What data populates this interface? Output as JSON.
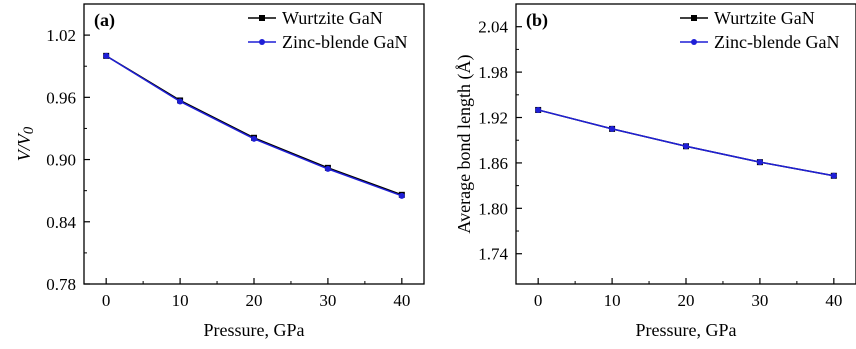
{
  "figure": {
    "colors": {
      "wurtzite": "#000000",
      "zincblende": "#1f1fd6",
      "axis": "#000000"
    }
  },
  "chart_data": [
    {
      "panel_label": "(a)",
      "type": "line",
      "xlabel": "Pressure, GPa",
      "ylabel": "V/V0",
      "ylabel_main": "V/V",
      "ylabel_sub": "0",
      "x": [
        0,
        10,
        20,
        30,
        40
      ],
      "xlim": [
        -3,
        43
      ],
      "ylim": [
        0.78,
        1.05
      ],
      "xticks": [
        0,
        10,
        20,
        30,
        40
      ],
      "yticks": [
        0.78,
        0.84,
        0.9,
        0.96,
        1.02
      ],
      "ytick_labels": [
        "0.78",
        "0.84",
        "0.90",
        "0.96",
        "1.02"
      ],
      "legend_position": "top-right",
      "series": [
        {
          "name": "Wurtzite GaN",
          "marker": "square",
          "color": "#000000",
          "values": [
            1.0,
            0.957,
            0.921,
            0.892,
            0.866
          ]
        },
        {
          "name": "Zinc-blende GaN",
          "marker": "circle",
          "color": "#1f1fd6",
          "values": [
            1.0,
            0.956,
            0.92,
            0.891,
            0.865
          ]
        }
      ]
    },
    {
      "panel_label": "(b)",
      "type": "line",
      "xlabel": "Pressure, GPa",
      "ylabel": "Average bond length (Å)",
      "x": [
        0,
        10,
        20,
        30,
        40
      ],
      "xlim": [
        -3,
        43
      ],
      "ylim": [
        1.7,
        2.07
      ],
      "xticks": [
        0,
        10,
        20,
        30,
        40
      ],
      "yticks": [
        1.74,
        1.8,
        1.86,
        1.92,
        1.98,
        2.04
      ],
      "ytick_labels": [
        "1.74",
        "1.80",
        "1.86",
        "1.92",
        "1.98",
        "2.04"
      ],
      "legend_position": "top-right",
      "series": [
        {
          "name": "Wurtzite GaN",
          "marker": "square",
          "color": "#000000",
          "values": [
            1.93,
            1.905,
            1.882,
            1.861,
            1.843
          ]
        },
        {
          "name": "Zinc-blende GaN",
          "marker": "circle",
          "color": "#1f1fd6",
          "values": [
            1.93,
            1.905,
            1.882,
            1.861,
            1.843
          ]
        }
      ]
    }
  ]
}
